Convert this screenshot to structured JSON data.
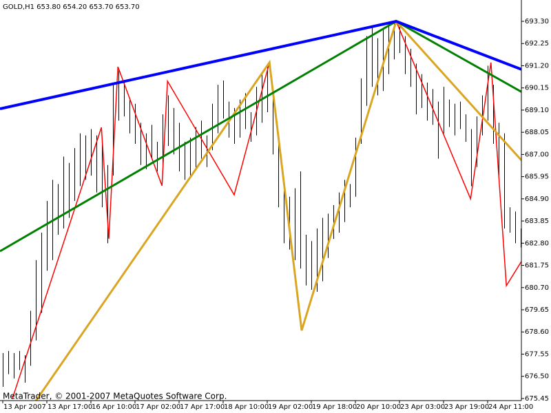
{
  "chart_data": {
    "type": "ohlc",
    "title": "GOLD,H1  653.80 654.20 653.70 653.70",
    "footer": "MetaTrader, © 2001-2007 MetaQuotes Software Corp.",
    "bar_color": "#000000",
    "xlim": [
      -0.5,
      94.125
    ],
    "ylim": [
      675.35,
      694.31
    ],
    "xticks": [
      {
        "value": 0,
        "label": "13 Apr 2007"
      },
      {
        "value": 8,
        "label": "13 Apr 17:00"
      },
      {
        "value": 16,
        "label": "16 Apr 10:00"
      },
      {
        "value": 24,
        "label": "17 Apr 02:00"
      },
      {
        "value": 32,
        "label": "17 Apr 17:00"
      },
      {
        "value": 40,
        "label": "18 Apr 10:00"
      },
      {
        "value": 48,
        "label": "19 Apr 02:00"
      },
      {
        "value": 56,
        "label": "19 Apr 18:00"
      },
      {
        "value": 64,
        "label": "20 Apr 10:00"
      },
      {
        "value": 72,
        "label": "23 Apr 03:00"
      },
      {
        "value": 80,
        "label": "23 Apr 19:00"
      },
      {
        "value": 88,
        "label": "24 Apr 11:00"
      }
    ],
    "yticks": [
      675.45,
      {
        "value": 676.5,
        "label": "676.50"
      },
      677.55,
      {
        "value": 678.6,
        "label": "678.60"
      },
      679.65,
      {
        "value": 680.7,
        "label": "680.70"
      },
      681.75,
      {
        "value": 682.8,
        "label": "682.80"
      },
      683.85,
      {
        "value": 684.9,
        "label": "684.90"
      },
      685.95,
      {
        "value": 687,
        "label": "687.00"
      },
      688.05,
      {
        "value": 689.1,
        "label": "689.10"
      },
      690.15,
      {
        "value": 691.2,
        "label": "691.20"
      },
      692.25,
      {
        "value": 693.3,
        "label": "693.30"
      }
    ],
    "low": [
      676.0,
      676.6,
      676.4,
      676.8,
      676.2,
      677.0,
      678.2,
      679.5,
      681.5,
      682.0,
      683.2,
      683.5,
      684.0,
      684.8,
      685.5,
      685.8,
      686.0,
      685.2,
      684.5,
      682.8,
      686.0,
      688.6,
      688.8,
      688.0,
      687.5,
      686.5,
      686.3,
      686.8,
      686.2,
      686.5,
      687.4,
      687.0,
      686.2,
      685.8,
      686.0,
      686.3,
      686.8,
      686.4,
      687.2,
      688.0,
      688.7,
      687.8,
      687.5,
      687.8,
      688.2,
      687.6,
      687.9,
      688.5,
      689.0,
      687.0,
      684.5,
      682.8,
      682.5,
      682.0,
      681.6,
      680.8,
      680.6,
      680.5,
      681.0,
      682.1,
      683.0,
      683.3,
      683.8,
      684.5,
      685.0,
      687.5,
      689.3,
      690.2,
      689.8,
      690.0,
      690.8,
      691.5,
      691.8,
      690.8,
      690.2,
      688.9,
      689.2,
      688.6,
      688.4,
      686.8,
      688.0,
      688.3,
      687.9,
      688.2,
      687.6,
      685.5,
      686.4,
      687.9,
      688.6,
      687.5,
      686.0,
      683.5,
      683.3,
      682.8,
      682.6
    ],
    "high": [
      677.6,
      677.7,
      677.6,
      677.7,
      677.5,
      679.6,
      682.0,
      683.3,
      684.8,
      685.8,
      685.6,
      686.9,
      686.6,
      687.3,
      688.0,
      687.9,
      688.2,
      687.9,
      687.6,
      686.5,
      690.3,
      691.0,
      690.4,
      689.6,
      689.4,
      688.5,
      688.0,
      688.4,
      687.6,
      688.9,
      689.8,
      689.2,
      688.5,
      687.6,
      687.8,
      688.3,
      688.6,
      687.9,
      689.4,
      690.3,
      690.5,
      689.5,
      689.2,
      689.6,
      689.9,
      689.0,
      690.2,
      690.8,
      691.2,
      689.8,
      687.5,
      685.7,
      685.0,
      685.4,
      686.2,
      683.2,
      682.9,
      683.5,
      684.0,
      684.2,
      684.6,
      685.2,
      685.8,
      685.6,
      687.8,
      690.6,
      692.6,
      693.1,
      692.5,
      692.9,
      693.2,
      693.3,
      693.1,
      692.6,
      692.0,
      691.3,
      690.8,
      690.4,
      690.1,
      689.5,
      690.2,
      689.6,
      689.4,
      689.5,
      688.9,
      688.2,
      688.8,
      689.8,
      691.2,
      690.3,
      688.5,
      688.0,
      684.5,
      684.3,
      683.5
    ],
    "lines": [
      {
        "color": "#ff0000",
        "x": [
          1.75,
          17.9,
          19.25,
          20.9,
          28.9,
          29.9,
          42,
          48.4,
          54.25,
          71.4,
          84.9,
          88.6,
          91.4,
          94.5
        ],
        "values": [
          675.45,
          688.28,
          683.01,
          691.15,
          685.52,
          690.47,
          685.09,
          691.35,
          678.67,
          693.3,
          684.9,
          691.35,
          680.79,
          682.09
        ]
      },
      {
        "color": "#daa520",
        "x": [
          4.5,
          48.4,
          54.25,
          71.4,
          94.5
        ],
        "values": [
          674.77,
          691.35,
          678.67,
          693.3,
          686.62
        ]
      },
      {
        "color": "#008000",
        "x": [
          -0.5,
          71.4,
          94.5
        ],
        "values": [
          682.42,
          693.3,
          689.91
        ]
      },
      {
        "color": "#0000ff",
        "x": [
          -0.5,
          71.4,
          94.5
        ],
        "values": [
          689.16,
          693.3,
          690.99
        ]
      }
    ]
  }
}
